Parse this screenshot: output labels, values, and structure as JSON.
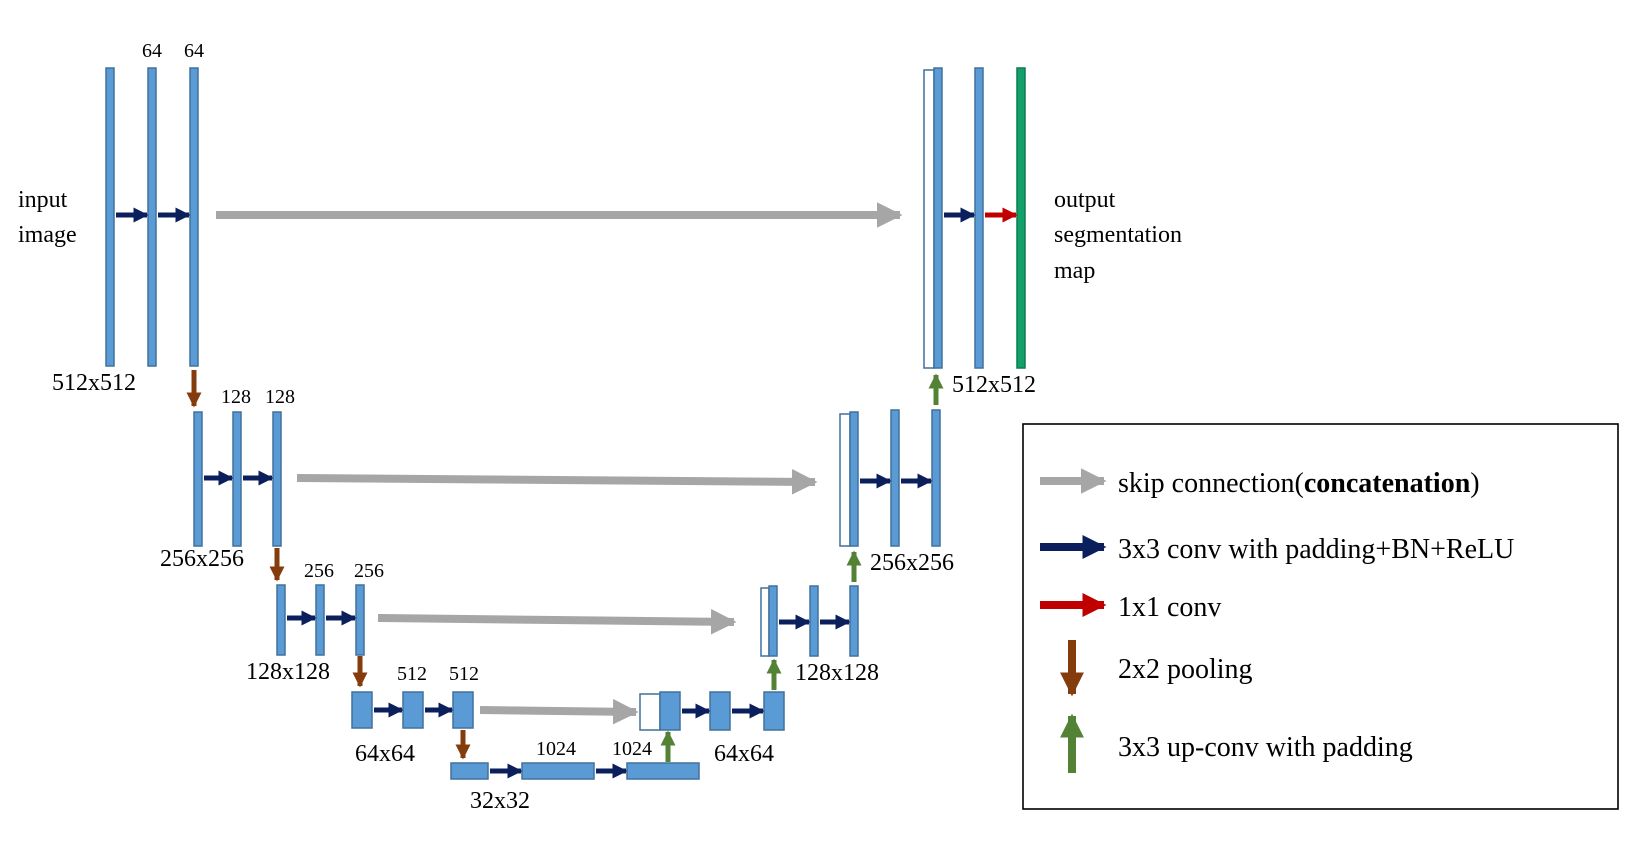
{
  "labels": {
    "input_line1": "input",
    "input_line2": "image",
    "output_line1": "output",
    "output_line2": "segmentation",
    "output_line3": "map",
    "l1_c1": "64",
    "l1_c2": "64",
    "l2_c1": "128",
    "l2_c2": "128",
    "l3_c1": "256",
    "l3_c2": "256",
    "l4_c1": "512",
    "l4_c2": "512",
    "b_c1": "1024",
    "b_c2": "1024",
    "size_l1_enc": "512x512",
    "size_l2_enc": "256x256",
    "size_l3_enc": "128x128",
    "size_l4_enc": "64x64",
    "size_b": "32x32",
    "size_l4_dec": "64x64",
    "size_l3_dec": "128x128",
    "size_l2_dec": "256x256",
    "size_l1_dec": "512x512"
  },
  "legend": {
    "skip_prefix": "skip connection(",
    "skip_bold": "concatenation",
    "skip_suffix": ")",
    "conv3": "3x3 conv with padding+BN+ReLU",
    "conv1": "1x1 conv",
    "pool": "2x2 pooling",
    "upconv": "3x3 up-conv with padding"
  },
  "colors": {
    "feature_map": "#5b9bd5",
    "output_map": "#13a06a",
    "skip_arrow": "#a6a6a6",
    "conv3_arrow": "#0b1f5c",
    "conv1_arrow": "#c00000",
    "pool_arrow": "#843c0c",
    "upconv_arrow": "#548235"
  }
}
